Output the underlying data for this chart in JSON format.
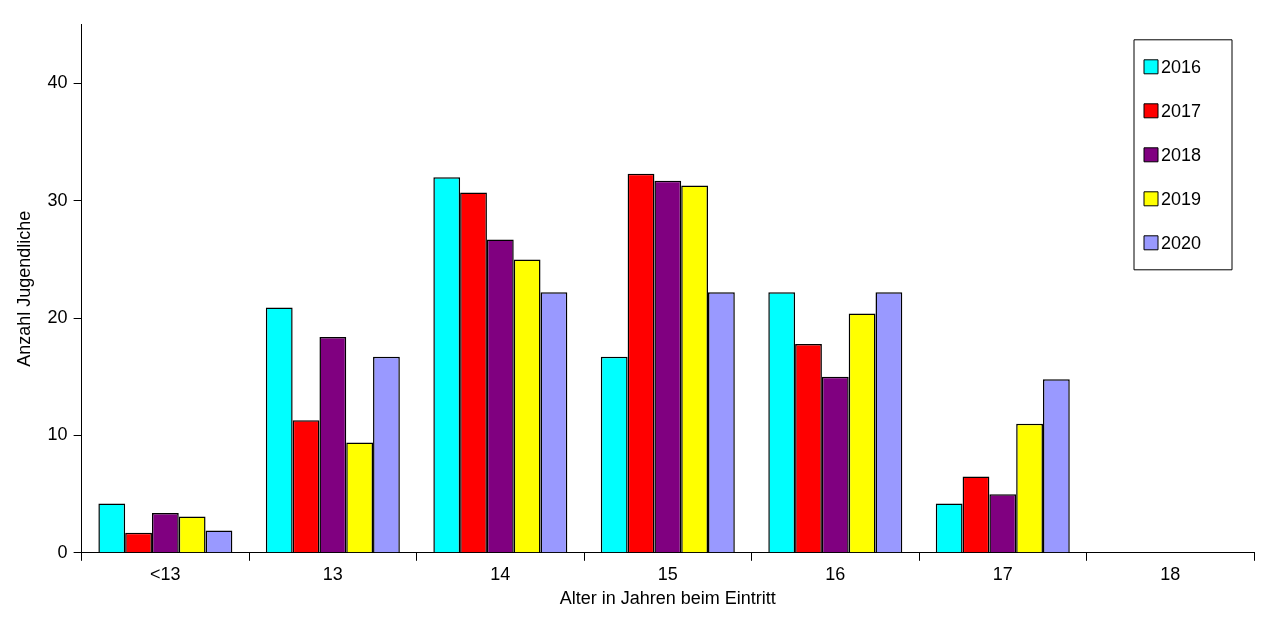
{
  "chart_data": {
    "type": "bar",
    "xlabel": "Alter in Jahren beim Eintritt",
    "ylabel": "Anzahl Jugendliche",
    "categories": [
      "<13",
      "13",
      "14",
      "15",
      "16",
      "17",
      "18"
    ],
    "series": [
      {
        "name": "2016",
        "color": "#00ffff",
        "values": [
          4.2,
          20.9,
          32.0,
          16.7,
          22.2,
          4.2,
          0
        ]
      },
      {
        "name": "2017",
        "color": "#ff0000",
        "values": [
          1.7,
          11.3,
          30.7,
          32.3,
          17.8,
          6.5,
          0
        ]
      },
      {
        "name": "2018",
        "color": "#800080",
        "values": [
          3.4,
          18.4,
          26.7,
          31.7,
          15.0,
          5.0,
          0
        ]
      },
      {
        "name": "2019",
        "color": "#ffff00",
        "values": [
          3.1,
          9.4,
          25.0,
          31.3,
          20.4,
          11.0,
          0
        ]
      },
      {
        "name": "2020",
        "color": "#9999ff",
        "values": [
          1.9,
          16.7,
          22.2,
          22.2,
          22.2,
          14.8,
          0
        ]
      }
    ],
    "ylim": [
      0,
      45
    ],
    "yticks": [
      0,
      10,
      20,
      30,
      40
    ],
    "grid": false,
    "legend": "top right"
  }
}
